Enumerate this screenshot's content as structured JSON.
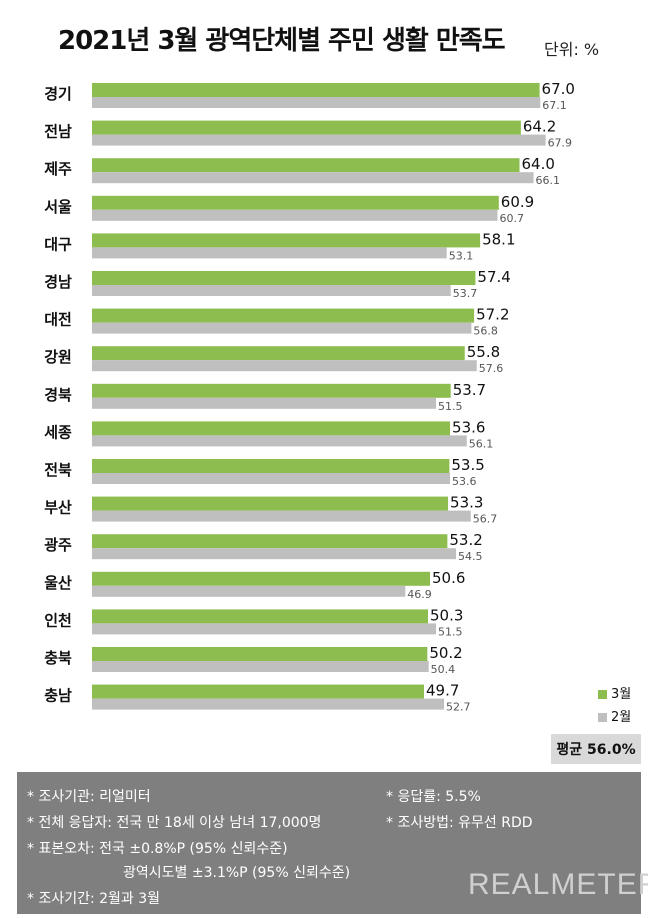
{
  "title": "2021년 3월 광역단체별 주민 생활 만족도",
  "unit_label": "단위: %",
  "colors": {
    "march": "#8dbd4f",
    "february": "#bfbfbf"
  },
  "chart_data": {
    "type": "bar",
    "orientation": "horizontal",
    "categories": [
      "경기",
      "전남",
      "제주",
      "서울",
      "대구",
      "경남",
      "대전",
      "강원",
      "경북",
      "세종",
      "전북",
      "부산",
      "광주",
      "울산",
      "인천",
      "충북",
      "충남"
    ],
    "series": [
      {
        "name": "3월",
        "values": [
          67.0,
          64.2,
          64.0,
          60.9,
          58.1,
          57.4,
          57.2,
          55.8,
          53.7,
          53.6,
          53.5,
          53.3,
          53.2,
          50.6,
          50.3,
          50.2,
          49.7
        ]
      },
      {
        "name": "2월",
        "values": [
          67.1,
          67.9,
          66.1,
          60.7,
          53.1,
          53.7,
          56.8,
          57.6,
          51.5,
          56.1,
          53.6,
          56.7,
          54.5,
          46.9,
          51.5,
          50.4,
          52.7
        ]
      }
    ],
    "legend": "right",
    "grid": false
  },
  "legend": {
    "march": "3월",
    "february": "2월"
  },
  "average_label": "평균 56.0%",
  "footer": {
    "agency": "* 조사기관: 리얼미터",
    "response_rate": "* 응답률: 5.5%",
    "respondents": "* 전체 응답자: 전국 만 18세 이상 남녀 17,000명",
    "method": "* 조사방법: 유무선 RDD",
    "error_national": "* 표본오차: 전국 ±0.8%P (95% 신뢰수준)",
    "error_regional": "광역시도별 ±3.1%P (95% 신뢰수준)",
    "period": "* 조사기간: 2월과 3월"
  },
  "logo": "REALMETER"
}
